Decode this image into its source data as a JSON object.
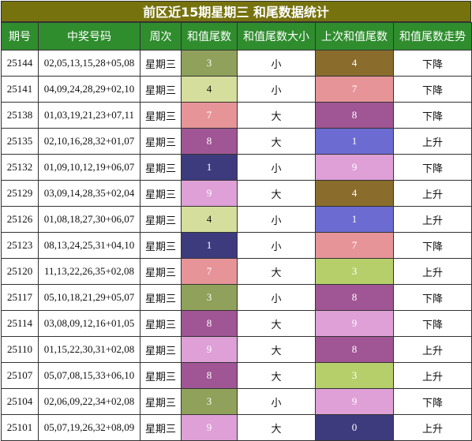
{
  "title": "前区近15期星期三 和尾数据统计",
  "headers": [
    "期号",
    "中奖号码",
    "周次",
    "和值尾数",
    "和值尾数大小",
    "上次和值尾数",
    "和值尾数走势"
  ],
  "digit_colors": {
    "0": "#3d3b7e",
    "1": "#6b6bd1",
    "3": "#a7b95f",
    "4": "#d5de9c",
    "7": "#e69498",
    "8": "#a05594",
    "9": "#dea0d6"
  },
  "rows": [
    {
      "issue": "25144",
      "numbers": "02,05,13,15,28+05,08",
      "weekday": "星期三",
      "tail": "3",
      "tail_color": "#8fa15a",
      "size": "小",
      "prev_tail": "4",
      "prev_color": "#8a6c2c",
      "trend": "下降"
    },
    {
      "issue": "25141",
      "numbers": "04,09,24,28,29+02,10",
      "weekday": "星期三",
      "tail": "4",
      "tail_color": "#d5de9c",
      "size": "小",
      "prev_tail": "7",
      "prev_color": "#e69498",
      "trend": "下降"
    },
    {
      "issue": "25138",
      "numbers": "01,03,19,21,23+07,11",
      "weekday": "星期三",
      "tail": "7",
      "tail_color": "#e69498",
      "size": "大",
      "prev_tail": "8",
      "prev_color": "#a05594",
      "trend": "下降"
    },
    {
      "issue": "25135",
      "numbers": "02,10,16,28,32+01,07",
      "weekday": "星期三",
      "tail": "8",
      "tail_color": "#a05594",
      "size": "大",
      "prev_tail": "1",
      "prev_color": "#6b6bd1",
      "trend": "上升"
    },
    {
      "issue": "25132",
      "numbers": "01,09,10,12,19+06,07",
      "weekday": "星期三",
      "tail": "1",
      "tail_color": "#3d3b7e",
      "size": "小",
      "prev_tail": "9",
      "prev_color": "#dea0d6",
      "trend": "下降"
    },
    {
      "issue": "25129",
      "numbers": "03,09,14,28,35+02,04",
      "weekday": "星期三",
      "tail": "9",
      "tail_color": "#dea0d6",
      "size": "大",
      "prev_tail": "4",
      "prev_color": "#8a6c2c",
      "trend": "上升"
    },
    {
      "issue": "25126",
      "numbers": "01,08,18,27,30+06,07",
      "weekday": "星期三",
      "tail": "4",
      "tail_color": "#d5de9c",
      "size": "小",
      "prev_tail": "1",
      "prev_color": "#6b6bd1",
      "trend": "上升"
    },
    {
      "issue": "25123",
      "numbers": "08,13,24,25,31+04,10",
      "weekday": "星期三",
      "tail": "1",
      "tail_color": "#3d3b7e",
      "size": "小",
      "prev_tail": "7",
      "prev_color": "#e69498",
      "trend": "下降"
    },
    {
      "issue": "25120",
      "numbers": "11,13,22,26,35+02,08",
      "weekday": "星期三",
      "tail": "7",
      "tail_color": "#e69498",
      "size": "大",
      "prev_tail": "3",
      "prev_color": "#b6cf6a",
      "trend": "上升"
    },
    {
      "issue": "25117",
      "numbers": "05,10,18,21,29+05,07",
      "weekday": "星期三",
      "tail": "3",
      "tail_color": "#8fa15a",
      "size": "小",
      "prev_tail": "8",
      "prev_color": "#a05594",
      "trend": "下降"
    },
    {
      "issue": "25114",
      "numbers": "03,08,09,12,16+01,05",
      "weekday": "星期三",
      "tail": "8",
      "tail_color": "#a05594",
      "size": "大",
      "prev_tail": "9",
      "prev_color": "#dea0d6",
      "trend": "下降"
    },
    {
      "issue": "25110",
      "numbers": "01,15,22,30,31+02,08",
      "weekday": "星期三",
      "tail": "9",
      "tail_color": "#dea0d6",
      "size": "大",
      "prev_tail": "8",
      "prev_color": "#a05594",
      "trend": "上升"
    },
    {
      "issue": "25107",
      "numbers": "05,07,08,15,33+06,10",
      "weekday": "星期三",
      "tail": "8",
      "tail_color": "#a05594",
      "size": "大",
      "prev_tail": "3",
      "prev_color": "#b6cf6a",
      "trend": "上升"
    },
    {
      "issue": "25104",
      "numbers": "02,06,09,22,34+02,08",
      "weekday": "星期三",
      "tail": "3",
      "tail_color": "#8fa15a",
      "size": "小",
      "prev_tail": "9",
      "prev_color": "#dea0d6",
      "trend": "下降"
    },
    {
      "issue": "25101",
      "numbers": "05,07,19,26,32+08,09",
      "weekday": "星期三",
      "tail": "9",
      "tail_color": "#dea0d6",
      "size": "大",
      "prev_tail": "0",
      "prev_color": "#3d3b7e",
      "trend": "上升"
    }
  ]
}
